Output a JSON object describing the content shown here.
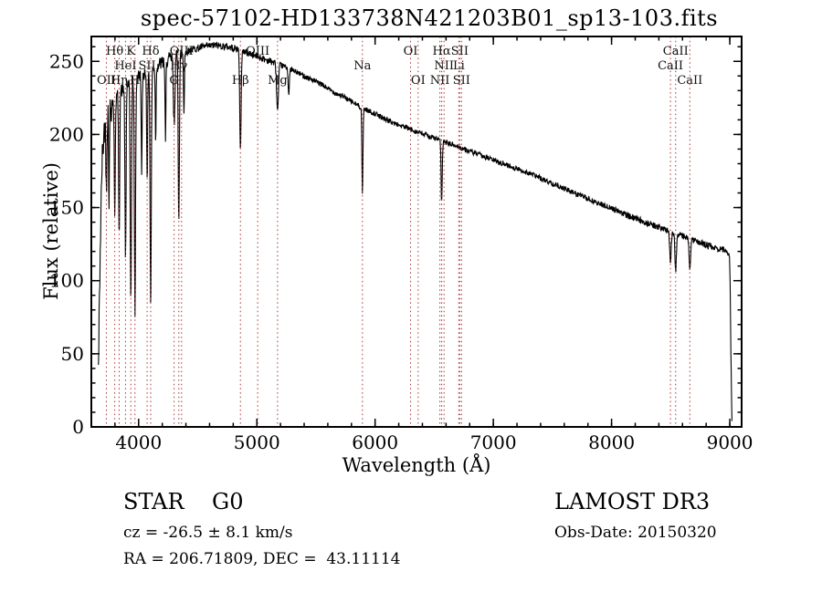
{
  "title": "spec-57102-HD133738N421203B01_sp13-103.fits",
  "footer": {
    "class_label": "STAR    G0",
    "cz": "cz = -26.5 ± 8.1 km/s",
    "radec": "RA = 206.71809, DEC =  43.11114",
    "survey": "LAMOST DR3",
    "obs_date": "Obs-Date: 20150320"
  },
  "chart_data": {
    "type": "line",
    "title": "spec-57102-HD133738N421203B01_sp13-103.fits",
    "xlabel": "Wavelength (Å)",
    "ylabel": "Flux (relative)",
    "xlim": [
      3600,
      9100
    ],
    "ylim": [
      0,
      267
    ],
    "xticks": [
      4000,
      5000,
      6000,
      7000,
      8000,
      9000
    ],
    "yticks": [
      0,
      50,
      100,
      150,
      200,
      250
    ],
    "x_minor_step": 200,
    "y_minor_step": 10,
    "grid": false,
    "line_color": "#000000",
    "marker_color": "#aa3333",
    "background": "#ffffff",
    "continuum_points": [
      [
        3660,
        40
      ],
      [
        3675,
        120
      ],
      [
        3690,
        180
      ],
      [
        3710,
        205
      ],
      [
        3740,
        215
      ],
      [
        3780,
        222
      ],
      [
        3830,
        228
      ],
      [
        3880,
        232
      ],
      [
        3930,
        236
      ],
      [
        3980,
        239
      ],
      [
        4050,
        242
      ],
      [
        4150,
        247
      ],
      [
        4250,
        251
      ],
      [
        4350,
        255
      ],
      [
        4450,
        258
      ],
      [
        4550,
        260
      ],
      [
        4650,
        261
      ],
      [
        4750,
        260
      ],
      [
        4850,
        258
      ],
      [
        4950,
        255
      ],
      [
        5050,
        252
      ],
      [
        5150,
        249
      ],
      [
        5250,
        246
      ],
      [
        5350,
        242
      ],
      [
        5450,
        238
      ],
      [
        5550,
        234
      ],
      [
        5650,
        229
      ],
      [
        5750,
        225
      ],
      [
        5850,
        220
      ],
      [
        5950,
        216
      ],
      [
        6050,
        212
      ],
      [
        6150,
        208
      ],
      [
        6250,
        205
      ],
      [
        6350,
        202
      ],
      [
        6450,
        199
      ],
      [
        6550,
        196
      ],
      [
        6650,
        193
      ],
      [
        6750,
        190
      ],
      [
        6850,
        187
      ],
      [
        6950,
        184
      ],
      [
        7050,
        181
      ],
      [
        7150,
        178
      ],
      [
        7250,
        175
      ],
      [
        7350,
        172
      ],
      [
        7450,
        168
      ],
      [
        7550,
        165
      ],
      [
        7650,
        161
      ],
      [
        7750,
        158
      ],
      [
        7850,
        154
      ],
      [
        7950,
        151
      ],
      [
        8050,
        148
      ],
      [
        8150,
        144
      ],
      [
        8250,
        141
      ],
      [
        8350,
        138
      ],
      [
        8450,
        135
      ],
      [
        8550,
        132
      ],
      [
        8650,
        129
      ],
      [
        8750,
        126
      ],
      [
        8850,
        123
      ],
      [
        8950,
        121
      ],
      [
        8995,
        119
      ],
      [
        9003,
        100
      ],
      [
        9008,
        60
      ],
      [
        9014,
        25
      ],
      [
        9018,
        4
      ]
    ],
    "absorption_lines": [
      [
        3727,
        45,
        9
      ],
      [
        3750,
        60,
        8
      ],
      [
        3798,
        80,
        10
      ],
      [
        3835,
        100,
        10
      ],
      [
        3889,
        120,
        11
      ],
      [
        3934,
        150,
        12
      ],
      [
        3969,
        160,
        12
      ],
      [
        4026,
        70,
        9
      ],
      [
        4072,
        80,
        9
      ],
      [
        4102,
        165,
        12
      ],
      [
        4144,
        50,
        8
      ],
      [
        4227,
        55,
        9
      ],
      [
        4300,
        45,
        16
      ],
      [
        4340,
        110,
        12
      ],
      [
        4383,
        40,
        9
      ],
      [
        4861,
        70,
        13
      ],
      [
        5175,
        32,
        18
      ],
      [
        5270,
        18,
        12
      ],
      [
        5893,
        60,
        10
      ],
      [
        6563,
        42,
        11
      ],
      [
        8498,
        20,
        14
      ],
      [
        8542,
        26,
        14
      ],
      [
        8662,
        22,
        14
      ]
    ],
    "spectral_lines": [
      {
        "label": "Hθ",
        "wavelength": 3798,
        "row": 1
      },
      {
        "label": "K",
        "wavelength": 3934,
        "row": 1
      },
      {
        "label": "Hδ",
        "wavelength": 4102,
        "row": 1
      },
      {
        "label": "OIII",
        "wavelength": 4363,
        "row": 1
      },
      {
        "label": "OIII",
        "wavelength": 5007,
        "row": 1
      },
      {
        "label": "OI",
        "wavelength": 6300,
        "row": 1
      },
      {
        "label": "Hα",
        "wavelength": 6563,
        "row": 1
      },
      {
        "label": "SII",
        "wavelength": 6716,
        "row": 1
      },
      {
        "label": "CaII",
        "wavelength": 8542,
        "row": 1
      },
      {
        "label": "HeI",
        "wavelength": 3889,
        "row": 2
      },
      {
        "label": "SII",
        "wavelength": 4072,
        "row": 2
      },
      {
        "label": "Hγ",
        "wavelength": 4340,
        "row": 2
      },
      {
        "label": "Na",
        "wavelength": 5893,
        "row": 2
      },
      {
        "label": "NII",
        "wavelength": 6583,
        "row": 2
      },
      {
        "label": "Li",
        "wavelength": 6708,
        "row": 2
      },
      {
        "label": "CaII",
        "wavelength": 8498,
        "row": 2
      },
      {
        "label": "OII",
        "wavelength": 3727,
        "row": 3
      },
      {
        "label": "Hη",
        "wavelength": 3835,
        "row": 3
      },
      {
        "label": "H",
        "wavelength": 3969,
        "row": 3
      },
      {
        "label": "G",
        "wavelength": 4300,
        "row": 3
      },
      {
        "label": "Hβ",
        "wavelength": 4861,
        "row": 3
      },
      {
        "label": "Mg",
        "wavelength": 5175,
        "row": 3
      },
      {
        "label": "OI",
        "wavelength": 6364,
        "row": 3
      },
      {
        "label": "NII",
        "wavelength": 6548,
        "row": 3
      },
      {
        "label": "SII",
        "wavelength": 6731,
        "row": 3
      },
      {
        "label": "CaII",
        "wavelength": 8662,
        "row": 3
      }
    ]
  }
}
